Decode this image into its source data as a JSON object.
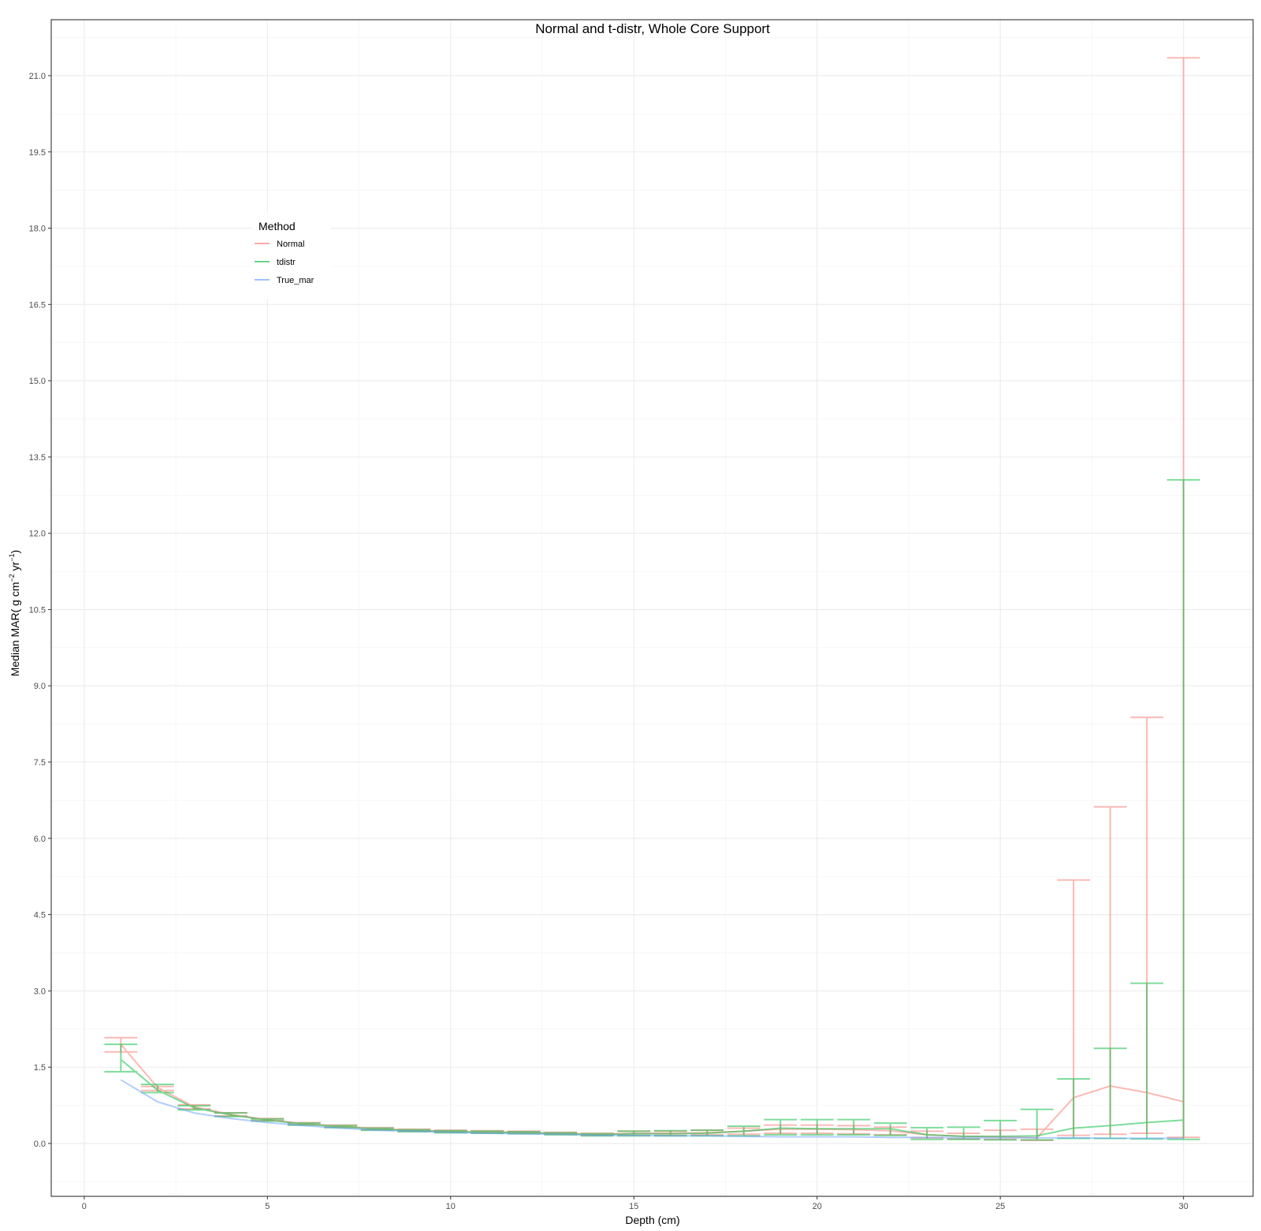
{
  "chart_data": {
    "type": "line",
    "title": "Normal and t-distr, Whole Core Support",
    "xlabel": "Depth (cm)",
    "ylabel": "Median MAR( g cm",
    "ylabel_sup1": "−2",
    "ylabel_mid": " yr",
    "ylabel_sup2": "−1",
    "ylabel_end": ")",
    "xlim": [
      -0.9,
      31.9
    ],
    "ylim": [
      -1.04,
      22.1
    ],
    "x_ticks": [
      0,
      5,
      10,
      15,
      20,
      25,
      30
    ],
    "x_tick_labels": [
      "0",
      "5",
      "10",
      "15",
      "20",
      "25",
      "30"
    ],
    "y_ticks": [
      0,
      1.5,
      3,
      4.5,
      6,
      7.5,
      9,
      10.5,
      12,
      13.5,
      15,
      16.5,
      18,
      19.5,
      21
    ],
    "y_tick_labels": [
      "0.0",
      "1.5",
      "3.0",
      "4.5",
      "6.0",
      "7.5",
      "9.0",
      "10.5",
      "12.0",
      "13.5",
      "15.0",
      "16.5",
      "18.0",
      "19.5",
      "21.0"
    ],
    "grid": true,
    "legend": {
      "title": "Method",
      "placement": "top-left",
      "entries": [
        "Normal",
        "tdistr",
        "True_mar"
      ]
    },
    "x": [
      1,
      2,
      3,
      4,
      5,
      6,
      7,
      8,
      9,
      10,
      11,
      12,
      13,
      14,
      15,
      16,
      17,
      18,
      19,
      20,
      21,
      22,
      23,
      24,
      25,
      26,
      27,
      28,
      29,
      30
    ],
    "series": [
      {
        "name": "Normal",
        "color": "#F8766D",
        "values": [
          1.95,
          1.1,
          0.72,
          0.57,
          0.47,
          0.39,
          0.34,
          0.29,
          0.26,
          0.24,
          0.23,
          0.22,
          0.2,
          0.18,
          0.2,
          0.2,
          0.21,
          0.24,
          0.28,
          0.28,
          0.27,
          0.25,
          0.17,
          0.14,
          0.13,
          0.11,
          0.9,
          1.13,
          1.0,
          0.82
        ],
        "lower": [
          1.8,
          1.04,
          0.68,
          0.54,
          0.45,
          0.37,
          0.32,
          0.27,
          0.24,
          0.22,
          0.21,
          0.2,
          0.18,
          0.16,
          0.16,
          0.16,
          0.17,
          0.18,
          0.2,
          0.2,
          0.19,
          0.17,
          0.11,
          0.09,
          0.08,
          0.06,
          0.16,
          0.18,
          0.2,
          0.12
        ],
        "upper": [
          2.08,
          1.12,
          0.76,
          0.6,
          0.49,
          0.41,
          0.36,
          0.31,
          0.28,
          0.26,
          0.25,
          0.24,
          0.22,
          0.2,
          0.24,
          0.24,
          0.26,
          0.3,
          0.36,
          0.36,
          0.35,
          0.32,
          0.24,
          0.2,
          0.26,
          0.28,
          5.18,
          6.62,
          8.38,
          21.35
        ]
      },
      {
        "name": "tdistr",
        "color": "#00BA38",
        "values": [
          1.65,
          1.05,
          0.7,
          0.56,
          0.46,
          0.38,
          0.33,
          0.28,
          0.25,
          0.23,
          0.22,
          0.21,
          0.19,
          0.17,
          0.19,
          0.19,
          0.2,
          0.24,
          0.3,
          0.29,
          0.29,
          0.29,
          0.17,
          0.14,
          0.14,
          0.15,
          0.3,
          0.35,
          0.41,
          0.46
        ],
        "lower": [
          1.41,
          1.0,
          0.66,
          0.53,
          0.44,
          0.36,
          0.31,
          0.26,
          0.23,
          0.21,
          0.2,
          0.19,
          0.17,
          0.15,
          0.15,
          0.15,
          0.15,
          0.15,
          0.17,
          0.17,
          0.17,
          0.16,
          0.08,
          0.08,
          0.07,
          0.07,
          0.1,
          0.1,
          0.09,
          0.08
        ],
        "upper": [
          1.95,
          1.16,
          0.74,
          0.6,
          0.48,
          0.4,
          0.35,
          0.3,
          0.27,
          0.25,
          0.24,
          0.23,
          0.21,
          0.19,
          0.24,
          0.25,
          0.26,
          0.34,
          0.47,
          0.47,
          0.47,
          0.4,
          0.31,
          0.32,
          0.45,
          0.67,
          1.27,
          1.87,
          3.15,
          13.05
        ]
      },
      {
        "name": "True_mar",
        "color": "#619CFF",
        "values": [
          1.25,
          0.82,
          0.6,
          0.49,
          0.41,
          0.35,
          0.3,
          0.26,
          0.24,
          0.22,
          0.2,
          0.19,
          0.18,
          0.16,
          0.16,
          0.15,
          0.15,
          0.14,
          0.13,
          0.13,
          0.13,
          0.12,
          0.12,
          0.11,
          0.11,
          0.11,
          0.11,
          0.1,
          0.1,
          0.1
        ]
      }
    ]
  }
}
